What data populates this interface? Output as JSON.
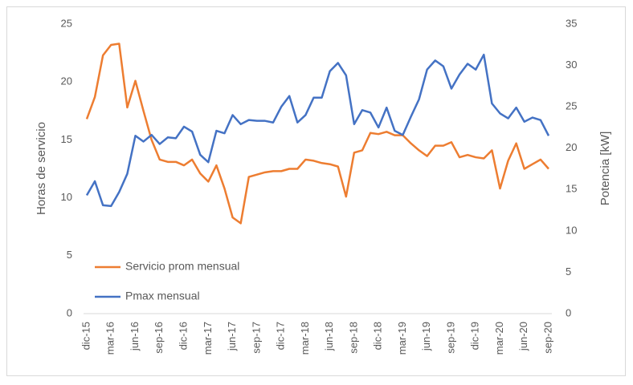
{
  "chart_data": {
    "type": "line",
    "y_label": "Horas de servicio",
    "y2_label": "Potencia [kW]",
    "categories": [
      "dic-15",
      null,
      null,
      "mar-16",
      null,
      null,
      "jun-16",
      null,
      null,
      "sep-16",
      null,
      null,
      "dic-16",
      null,
      null,
      "mar-17",
      null,
      null,
      "jun-17",
      null,
      null,
      "sep-17",
      null,
      null,
      "dic-17",
      null,
      null,
      "mar-18",
      null,
      null,
      "jun-18",
      null,
      null,
      "sep-18",
      null,
      null,
      "dic-18",
      null,
      null,
      "mar-19",
      null,
      null,
      "jun-19",
      null,
      null,
      "sep-19",
      null,
      null,
      "dic-19",
      null,
      null,
      "mar-20",
      null,
      null,
      "jun-20",
      null,
      null,
      "sep-20"
    ],
    "series": [
      {
        "name": "Servicio prom mensual",
        "color": "#ed7d31",
        "values": [
          16.8,
          18.7,
          22.3,
          23.2,
          23.3,
          17.8,
          20.1,
          17.5,
          15,
          13.3,
          13.1,
          13.1,
          12.8,
          13.3,
          12.1,
          11.4,
          12.8,
          10.8,
          8.3,
          7.8,
          11.8,
          12,
          12.2,
          12.3,
          12.3,
          12.5,
          12.5,
          13.3,
          13.2,
          13,
          12.9,
          12.7,
          10.1,
          13.9,
          14.1,
          15.6,
          15.5,
          15.7,
          15.4,
          15.4,
          14.7,
          14.1,
          13.6,
          14.5,
          14.5,
          14.8,
          13.5,
          13.7,
          13.5,
          13.4,
          14.1,
          10.8,
          13.2,
          14.7,
          12.5,
          12.9,
          13.3,
          12.5
        ]
      },
      {
        "name": "Pmax mensual",
        "color": "#4472c4",
        "axis": "y2",
        "values": [
          14.3,
          16,
          13.1,
          13,
          14.7,
          16.9,
          21.5,
          20.8,
          21.6,
          20.5,
          21.3,
          21.2,
          22.6,
          22,
          19.2,
          18.3,
          22.1,
          21.8,
          24,
          22.9,
          23.4,
          23.3,
          23.3,
          23.1,
          25,
          26.3,
          23.1,
          24,
          26.1,
          26.1,
          29.3,
          30.3,
          28.8,
          22.9,
          24.6,
          24.3,
          22.5,
          24.9,
          22.1,
          21.6,
          23.8,
          25.9,
          29.5,
          30.6,
          29.9,
          27.2,
          28.9,
          30.2,
          29.5,
          31.3,
          25.4,
          24.2,
          23.6,
          24.9,
          23.2,
          23.7,
          23.4,
          21.5
        ]
      }
    ],
    "ylim": [
      0,
      25
    ],
    "yticks": [
      0,
      5,
      10,
      15,
      20,
      25
    ],
    "y2lim": [
      0,
      35
    ],
    "y2ticks": [
      0,
      5,
      10,
      15,
      20,
      25,
      30,
      35
    ],
    "grid": false,
    "legend": "lower left"
  }
}
